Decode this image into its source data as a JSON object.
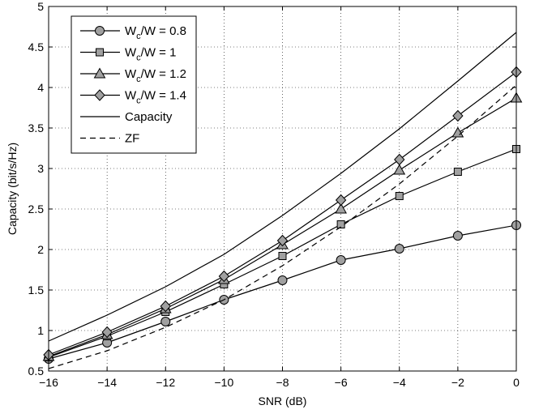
{
  "chart_data": {
    "type": "line",
    "xlabel": "SNR (dB)",
    "ylabel": "Capacity (bit/s/Hz)",
    "xlim": [
      -16,
      0
    ],
    "ylim": [
      0.5,
      5
    ],
    "xticks": [
      -16,
      -14,
      -12,
      -10,
      -8,
      -6,
      -4,
      -2,
      0
    ],
    "xtick_labels": [
      "−16",
      "−14",
      "−12",
      "−10",
      "−8",
      "−6",
      "−4",
      "−2",
      "0"
    ],
    "yticks": [
      0.5,
      1,
      1.5,
      2,
      2.5,
      3,
      3.5,
      4,
      4.5,
      5
    ],
    "ytick_labels": [
      "0.5",
      "1",
      "1.5",
      "2",
      "2.5",
      "3",
      "3.5",
      "4",
      "4.5",
      "5"
    ],
    "grid": true,
    "legend_position": "top-left",
    "x": [
      -16,
      -14,
      -12,
      -10,
      -8,
      -6,
      -4,
      -2,
      0
    ],
    "series": [
      {
        "name_main": "W",
        "name_sub": "c",
        "name_rest": "/W = 0.8",
        "marker": "circle",
        "line": "solid",
        "values": [
          0.65,
          0.85,
          1.11,
          1.38,
          1.62,
          1.87,
          2.01,
          2.17,
          2.3
        ]
      },
      {
        "name_main": "W",
        "name_sub": "c",
        "name_rest": "/W = 1",
        "marker": "square",
        "line": "solid",
        "values": [
          0.67,
          0.93,
          1.23,
          1.57,
          1.92,
          2.31,
          2.66,
          2.96,
          3.24
        ]
      },
      {
        "name_main": "W",
        "name_sub": "c",
        "name_rest": "/W = 1.2",
        "marker": "triangle",
        "line": "solid",
        "values": [
          0.68,
          0.95,
          1.27,
          1.63,
          2.06,
          2.5,
          2.98,
          3.44,
          3.87
        ]
      },
      {
        "name_main": "W",
        "name_sub": "c",
        "name_rest": "/W = 1.4",
        "marker": "diamond",
        "line": "solid",
        "values": [
          0.7,
          0.98,
          1.3,
          1.67,
          2.11,
          2.61,
          3.11,
          3.65,
          4.19
        ]
      },
      {
        "name": "Capacity",
        "marker": "none",
        "line": "solid",
        "values": [
          0.87,
          1.19,
          1.54,
          1.94,
          2.42,
          2.94,
          3.49,
          4.08,
          4.68
        ]
      },
      {
        "name": "ZF",
        "marker": "none",
        "line": "dashed",
        "values": [
          0.53,
          0.75,
          1.04,
          1.38,
          1.8,
          2.28,
          2.81,
          3.4,
          4.03
        ]
      }
    ],
    "colors": {
      "line": "#000000",
      "marker_fill": "#a0a0a0",
      "grid": "#000000"
    }
  }
}
